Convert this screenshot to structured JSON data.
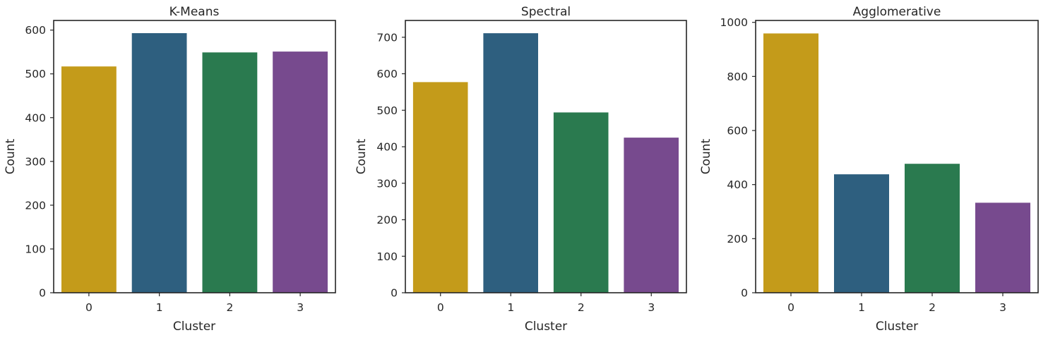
{
  "chart_data": [
    {
      "type": "bar",
      "title": "K-Means",
      "xlabel": "Cluster",
      "ylabel": "Count",
      "categories": [
        "0",
        "1",
        "2",
        "3"
      ],
      "values": [
        517,
        593,
        549,
        551
      ],
      "ylim": [
        0,
        622
      ],
      "yticks": [
        0,
        100,
        200,
        300,
        400,
        500,
        600
      ],
      "colors": [
        "#c49b1a",
        "#2e5f7f",
        "#2a7a4f",
        "#774a8e"
      ],
      "grid": false,
      "legend": "none"
    },
    {
      "type": "bar",
      "title": "Spectral",
      "xlabel": "Cluster",
      "ylabel": "Count",
      "categories": [
        "0",
        "1",
        "2",
        "3"
      ],
      "values": [
        577,
        711,
        494,
        425
      ],
      "ylim": [
        0,
        746
      ],
      "yticks": [
        0,
        100,
        200,
        300,
        400,
        500,
        600,
        700
      ],
      "colors": [
        "#c49b1a",
        "#2e5f7f",
        "#2a7a4f",
        "#774a8e"
      ],
      "grid": false,
      "legend": "none"
    },
    {
      "type": "bar",
      "title": "Agglomerative",
      "xlabel": "Cluster",
      "ylabel": "Count",
      "categories": [
        "0",
        "1",
        "2",
        "3"
      ],
      "values": [
        959,
        438,
        477,
        333
      ],
      "ylim": [
        0,
        1007
      ],
      "yticks": [
        0,
        200,
        400,
        600,
        800,
        1000
      ],
      "colors": [
        "#c49b1a",
        "#2e5f7f",
        "#2a7a4f",
        "#774a8e"
      ],
      "grid": false,
      "legend": "none"
    }
  ]
}
